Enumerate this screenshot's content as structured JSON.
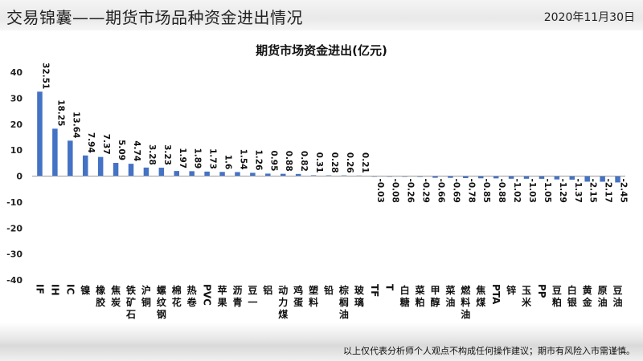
{
  "header": {
    "title": "交易锦囊——期货市场品种资金进出情况",
    "date": "2020年11月30日"
  },
  "footer": {
    "disclaimer": "以上仅代表分析师个人观点不构成任何操作建议；期市有风险入市需谨慎。"
  },
  "colors": {
    "bar": "#4472C4",
    "axis": "#333333"
  },
  "chart_data": {
    "type": "bar",
    "title": "期货市场资金进出(亿元)",
    "ylim": [
      -40,
      40
    ],
    "yticks": [
      40,
      30,
      20,
      10,
      0,
      -10,
      -20,
      -30,
      -40
    ],
    "grid": false,
    "legend": "none",
    "categories": [
      "IF",
      "IH",
      "IC",
      "镍",
      "橡胶",
      "焦炭",
      "铁矿石",
      "沪铜",
      "螺纹钢",
      "棉花",
      "热卷",
      "PVC",
      "苹果",
      "沥青",
      "豆一",
      "铝",
      "动力煤",
      "鸡蛋",
      "塑料",
      "铅",
      "棕榈油",
      "玻璃",
      "TF",
      "T",
      "白糖",
      "菜粕",
      "甲醇",
      "菜油",
      "燃料油",
      "焦煤",
      "PTA",
      "锌",
      "玉米",
      "PP",
      "豆粕",
      "白银",
      "黄金",
      "原油",
      "豆油"
    ],
    "values": [
      32.51,
      18.25,
      13.64,
      7.94,
      7.37,
      5.09,
      4.74,
      3.28,
      3.23,
      1.97,
      1.89,
      1.73,
      1.6,
      1.54,
      1.26,
      0.95,
      0.88,
      0.82,
      0.31,
      0.28,
      0.26,
      0.21,
      -0.03,
      -0.08,
      -0.26,
      -0.29,
      -0.66,
      -0.69,
      -0.78,
      -0.85,
      -0.88,
      -1.02,
      -1.03,
      -1.05,
      -1.29,
      -1.37,
      -2.15,
      -2.17,
      -2.45
    ],
    "labels": [
      "32.51",
      "18.25",
      "13.64",
      "7.94",
      "7.37",
      "5.09",
      "4.74",
      "3.28",
      "3.23",
      "1.97",
      "1.89",
      "1.73",
      "1.6",
      "1.54",
      "1.26",
      "0.95",
      "0.88",
      "0.82",
      "0.31",
      "0.28",
      "0.26",
      "0.21",
      "-0.03",
      "-0.08",
      "-0.26",
      "-0.29",
      "-0.66",
      "-0.69",
      "-0.78",
      "-0.85",
      "-0.88",
      "-1.02",
      "-1.03",
      "-1.05",
      "-1.29",
      "-1.37",
      "-2.15",
      "-2.17",
      "-2.45"
    ]
  }
}
